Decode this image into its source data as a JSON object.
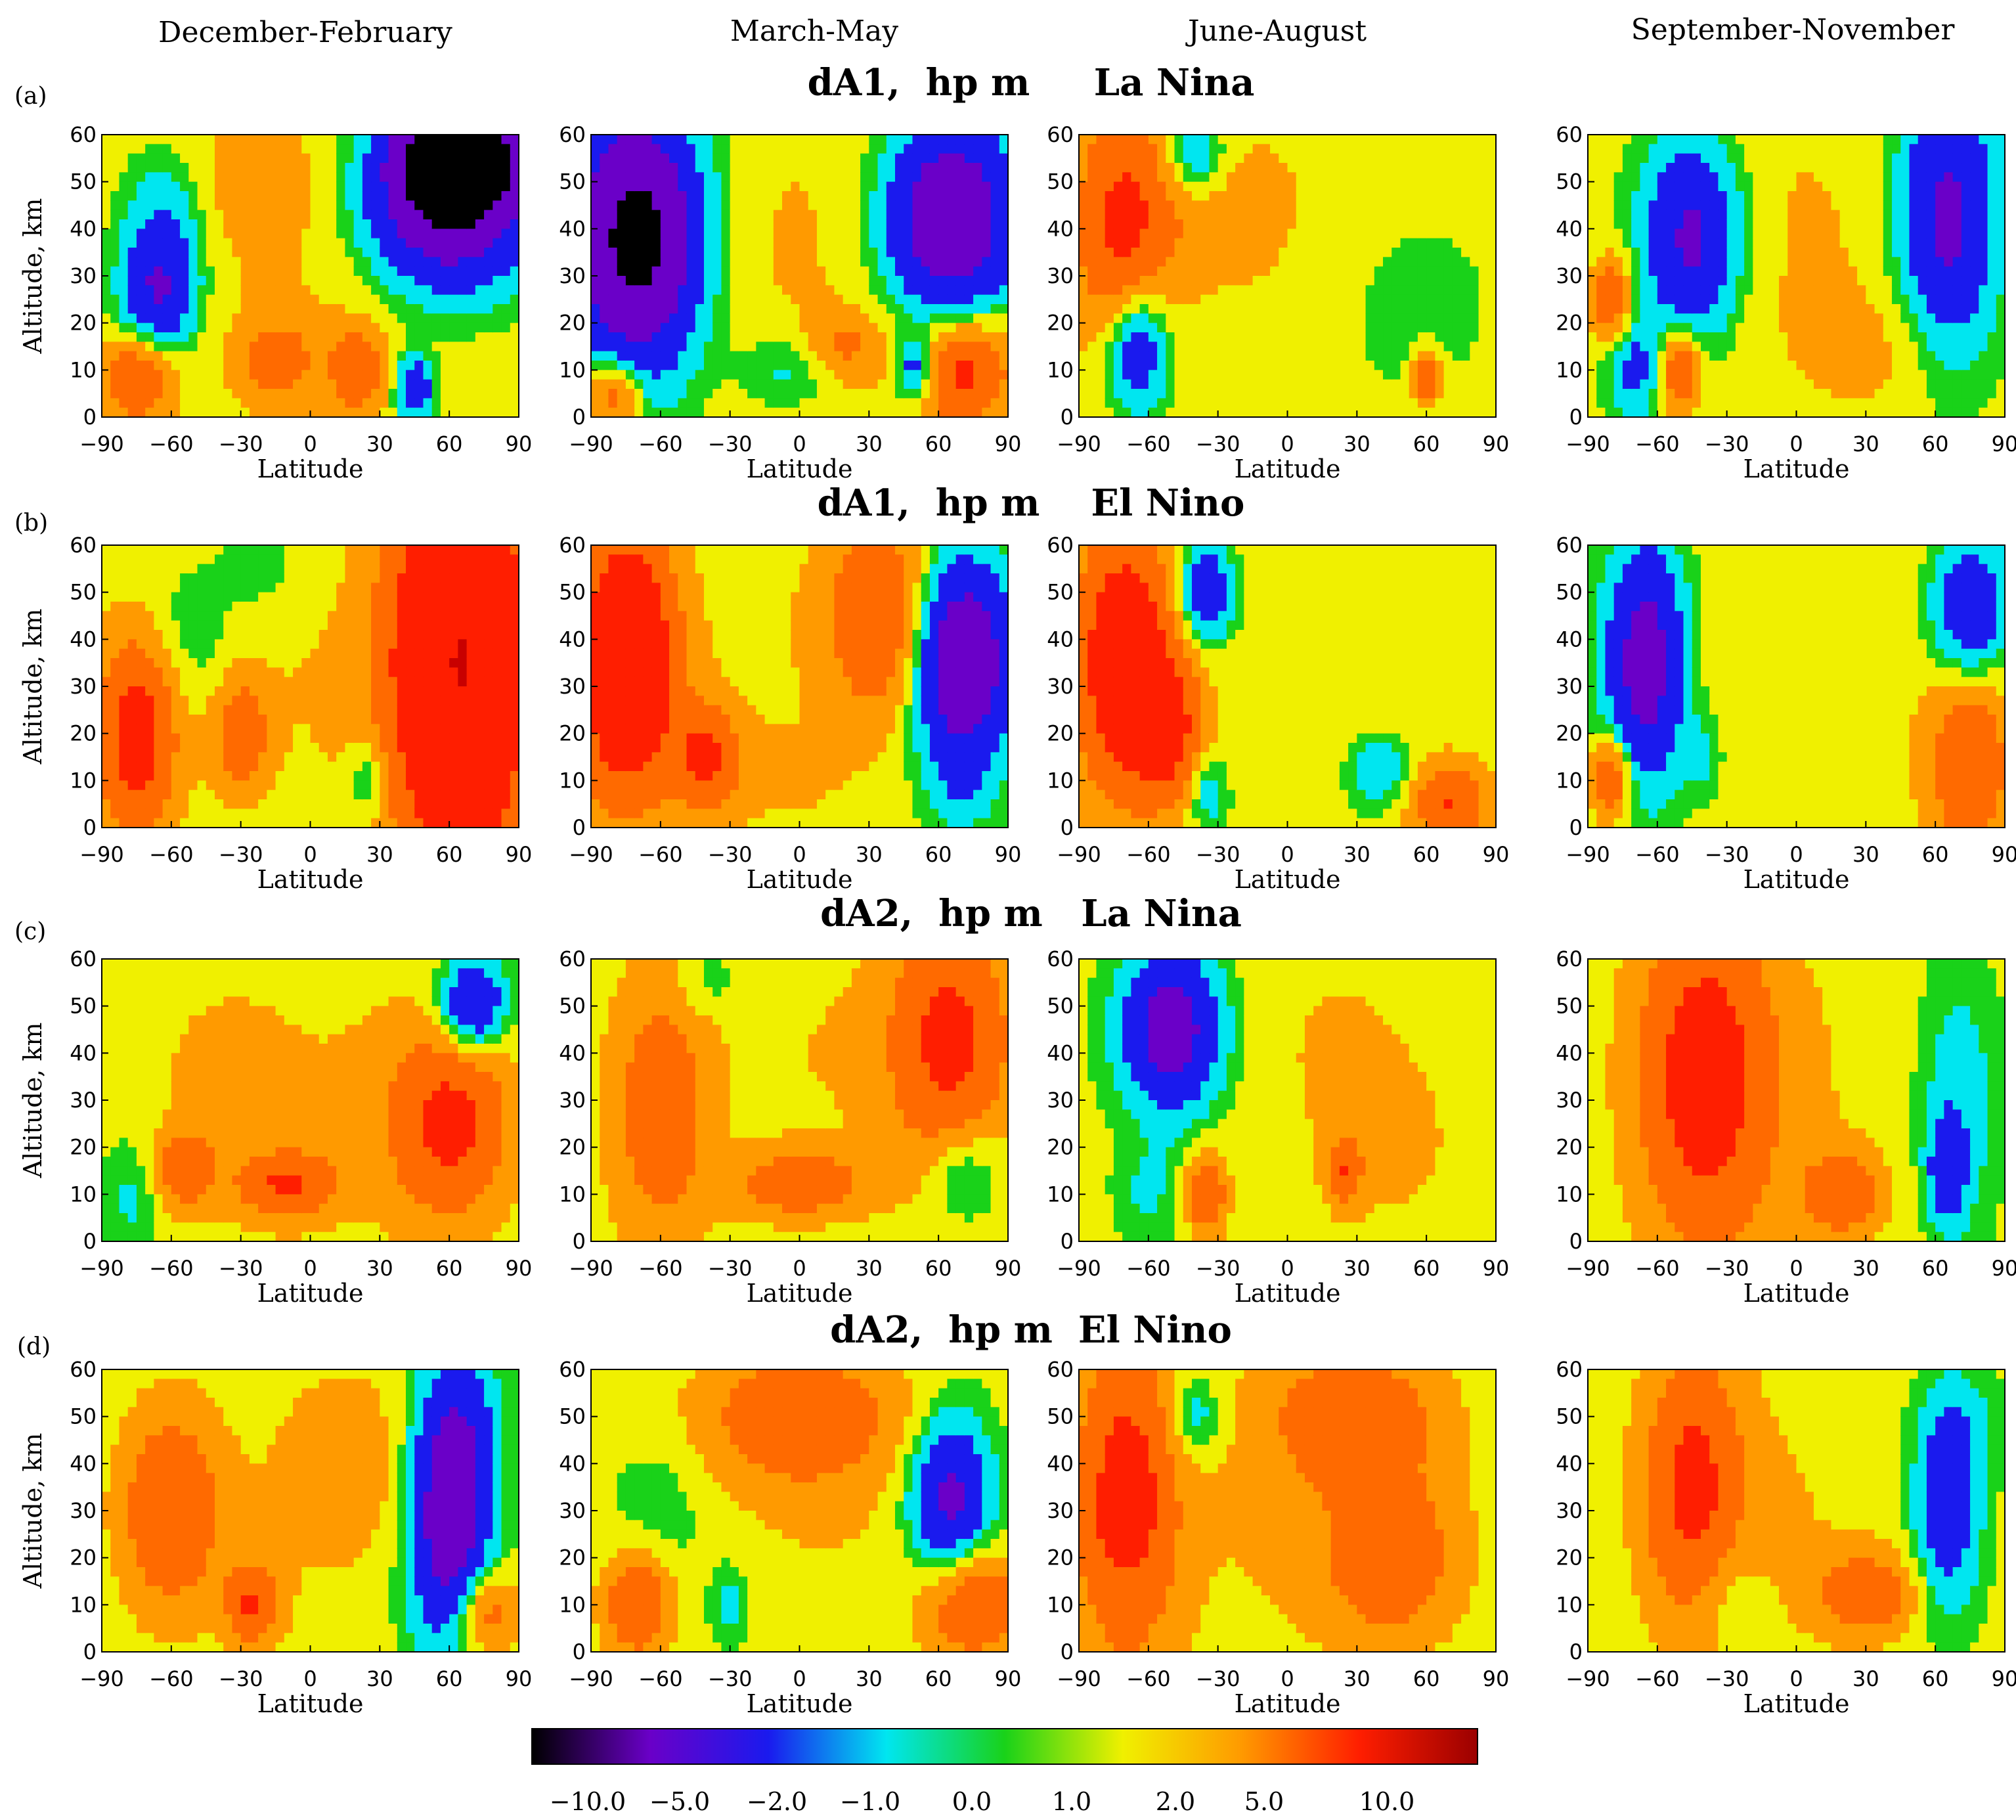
{
  "figure": {
    "season_headers": [
      "December-February",
      "March-May",
      "June-August",
      "September-November"
    ],
    "rows": [
      {
        "label": "(a)",
        "title": "dA1,  hp m     La Nina"
      },
      {
        "label": "(b)",
        "title": "dA1,  hp m    El Nino"
      },
      {
        "label": "(c)",
        "title": "dA2,  hp m   La Nina"
      },
      {
        "label": "(d)",
        "title": "dA2,  hp m  El Nino"
      }
    ]
  },
  "chart_data": {
    "type": "heatmap",
    "description_kind": "contour",
    "panels_grid": [
      4,
      4
    ],
    "xlabel": "Latitude",
    "ylabel": "Altitude, km",
    "x_ticks": [
      "−90",
      "−60",
      "−30",
      "0",
      "30",
      "60",
      "90"
    ],
    "y_ticks": [
      "0",
      "10",
      "20",
      "30",
      "40",
      "50",
      "60"
    ],
    "xlim": [
      -90,
      90
    ],
    "ylim": [
      0,
      60
    ],
    "colorbar": {
      "labels": [
        "−10.0",
        "−5.0",
        "−2.0",
        "−1.0",
        "0.0",
        "1.0",
        "2.0",
        "5.0",
        "10.0"
      ],
      "colors": [
        "#000000",
        "#6a00c8",
        "#1a1aee",
        "#00e6f0",
        "#19d219",
        "#f0f000",
        "#ff9a00",
        "#ff1e00",
        "#9b0000"
      ]
    },
    "field_colors": {
      "-10": "#000000",
      "-5": "#6a00c8",
      "-3": "#1a1aee",
      "-1.5": "#00e6f0",
      "-0.7": "#19d219",
      "-0.2": "#f0f000",
      "0.5": "#ff9a00",
      "1.5": "#ff6a00",
      "3": "#ff1e00",
      "8": "#c80000"
    }
  }
}
